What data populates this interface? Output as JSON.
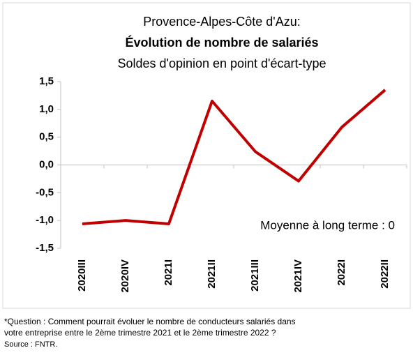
{
  "chart_data": {
    "type": "line",
    "title": "Provence-Alpes-Côte d'Azu:",
    "subtitle_bold": "Évolution de nombre de salariés",
    "subtitle": "Soldes d'opinion en point d'écart-type",
    "categories": [
      "2020III",
      "2020IV",
      "2021I",
      "2021II",
      "2021III",
      "2021IV",
      "2022I",
      "2022II"
    ],
    "series": [
      {
        "name": "Soldes d'opinion",
        "color": "#c00000",
        "values": [
          -1.06,
          -1.0,
          -1.06,
          1.15,
          0.24,
          -0.29,
          0.68,
          1.35
        ]
      }
    ],
    "ylim": [
      -1.5,
      1.5
    ],
    "yticks": [
      {
        "value": 1.5,
        "label": "1,5"
      },
      {
        "value": 1.0,
        "label": "1,0"
      },
      {
        "value": 0.5,
        "label": "0,5"
      },
      {
        "value": 0.0,
        "label": "0,0"
      },
      {
        "value": -0.5,
        "label": "-0,5"
      },
      {
        "value": -1.0,
        "label": "-1,0"
      },
      {
        "value": -1.5,
        "label": "-1,5"
      }
    ],
    "annotation": "Moyenne à long terme : 0",
    "footnote": [
      "*Question : Comment pourrait évoluer le nombre de conducteurs salariés dans",
      "votre entreprise entre le 2ème trimestre 2021 et le 2ème trimestre 2022 ?"
    ],
    "source": "Source : FNTR."
  }
}
